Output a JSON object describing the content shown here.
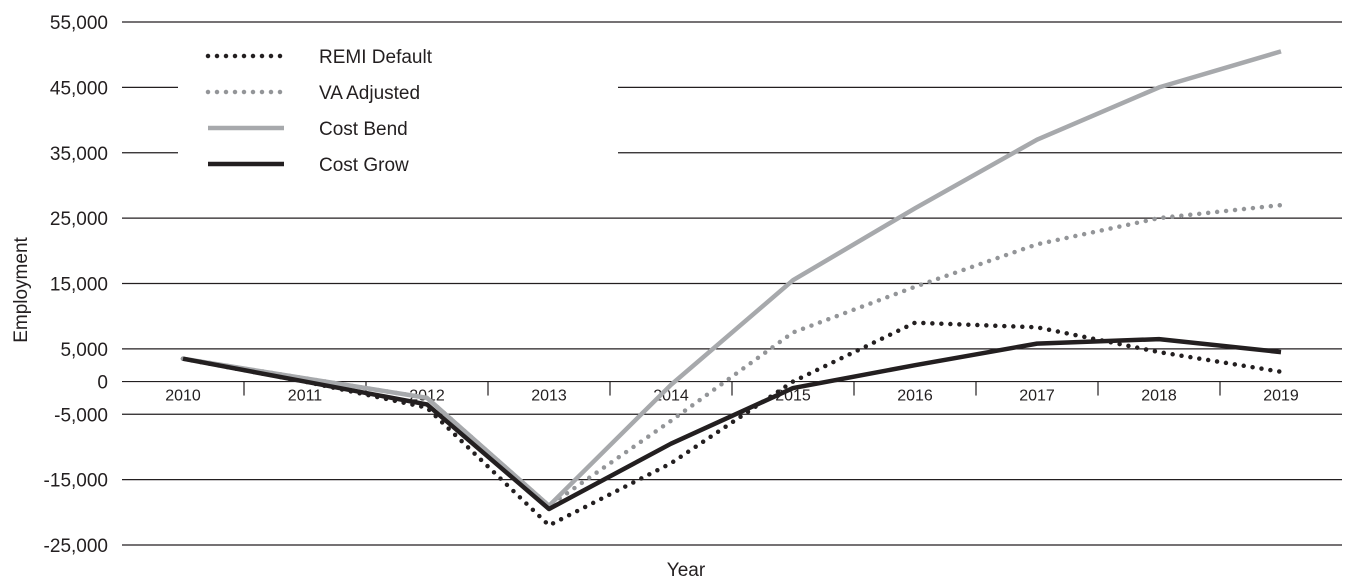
{
  "chart_data": {
    "type": "line",
    "title": "",
    "xlabel": "Year",
    "ylabel": "Employment",
    "categories": [
      "2010",
      "2011",
      "2012",
      "2013",
      "2014",
      "2015",
      "2016",
      "2017",
      "2018",
      "2019"
    ],
    "yticks": [
      "55,000",
      "45,000",
      "35,000",
      "25,000",
      "15,000",
      "5,000",
      "0",
      "-5,000",
      "-15,000",
      "-25,000"
    ],
    "ytick_values": [
      55000,
      45000,
      35000,
      25000,
      15000,
      5000,
      0,
      -5000,
      -15000,
      -25000
    ],
    "ylim": [
      -25000,
      55000
    ],
    "grid": true,
    "legend_position": "top-left",
    "series": [
      {
        "name": "REMI Default",
        "style": "dotted",
        "color": "#231f20",
        "values": [
          3500,
          0,
          -4000,
          -22000,
          -12500,
          0,
          9000,
          8300,
          4500,
          1500
        ]
      },
      {
        "name": "VA Adjusted",
        "style": "dotted",
        "color": "#939598",
        "values": [
          3500,
          500,
          -2500,
          -19000,
          -6000,
          7500,
          14500,
          21000,
          25000,
          27000
        ]
      },
      {
        "name": "Cost Bend",
        "style": "solid",
        "color": "#a7a9ac",
        "values": [
          3500,
          500,
          -2500,
          -19000,
          -500,
          15500,
          26500,
          37000,
          45000,
          50500
        ]
      },
      {
        "name": "Cost Grow",
        "style": "solid",
        "color": "#231f20",
        "values": [
          3500,
          0,
          -3500,
          -19500,
          -9500,
          -1000,
          2500,
          5800,
          6500,
          4500
        ]
      }
    ]
  }
}
